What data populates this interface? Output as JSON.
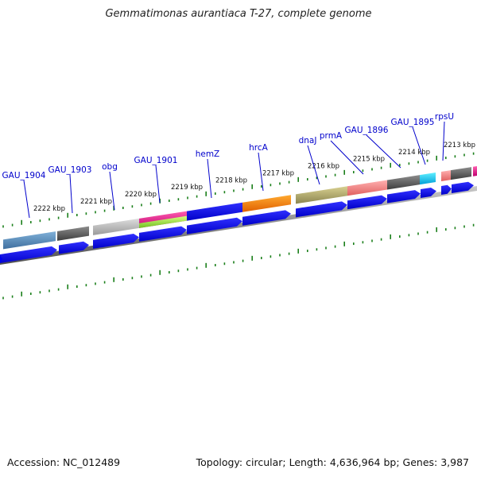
{
  "title": "Gemmatimonas aurantiaca T-27, complete genome",
  "footer": {
    "accession": "Accession: NC_012489",
    "summary": "Topology: circular; Length: 4,636,964 bp; Genes: 3,987"
  },
  "kbp_ticks": [
    "2222 kbp",
    "2221 kbp",
    "2220 kbp",
    "2219 kbp",
    "2218 kbp",
    "2217 kbp",
    "2216 kbp",
    "2215 kbp",
    "2214 kbp",
    "2213 kbp"
  ],
  "gene_labels": [
    "GAU_1904",
    "GAU_1903",
    "obg",
    "GAU_1901",
    "hemZ",
    "hrcA",
    "dnaJ",
    "prmA",
    "GAU_1896",
    "GAU_1895",
    "rpsU"
  ],
  "colors": {
    "gene_arrow": "#0000ee",
    "label": "#0000cc",
    "tick": "#1a7f1a",
    "backbone": "#7a7a7a"
  }
}
